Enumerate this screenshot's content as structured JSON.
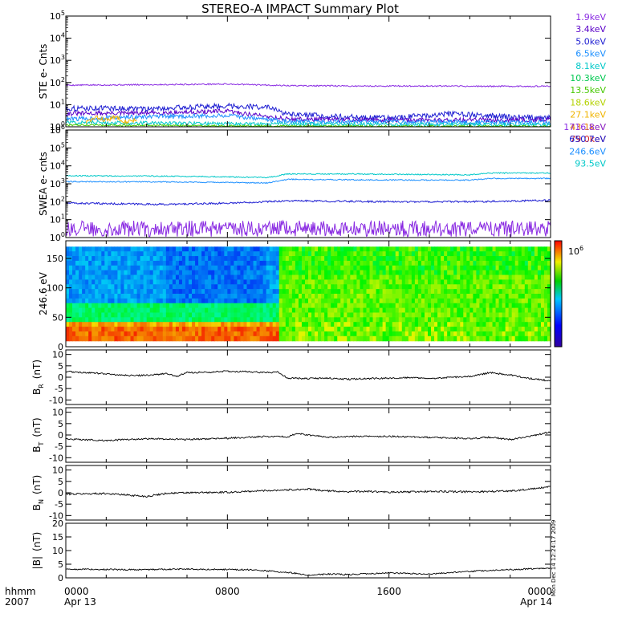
{
  "chart_data": {
    "title": "STEREO-A IMPACT Summary Plot",
    "time_axis": {
      "corner_labels": [
        "hhmm",
        "2007"
      ],
      "ticks": [
        {
          "hour": 0,
          "hhmm": "0000",
          "date": "Apr 13"
        },
        {
          "hour": 8,
          "hhmm": "0800",
          "date": ""
        },
        {
          "hour": 16,
          "hhmm": "1600",
          "date": ""
        },
        {
          "hour": 24,
          "hhmm": "0000",
          "date": "Apr 14"
        }
      ],
      "range_hours": [
        0,
        24
      ]
    },
    "side_annotation": "Mon Dec 14 12:24:17 2009",
    "panels": [
      {
        "id": "ste",
        "ylabel": "STE e- Cnts",
        "type": "line",
        "scale": "log",
        "ylim_exp": [
          0,
          5
        ],
        "ticks": [
          {
            "base": "10",
            "exp": "0",
            "v": 0
          },
          {
            "base": "10",
            "exp": "1",
            "v": 1
          },
          {
            "base": "10",
            "exp": "2",
            "v": 2
          },
          {
            "base": "10",
            "exp": "3",
            "v": 3
          },
          {
            "base": "10",
            "exp": "4",
            "v": 4
          },
          {
            "base": "10",
            "exp": "5",
            "v": 5
          }
        ],
        "legend": [
          {
            "label": "1.9keV",
            "color": "#8a2be2"
          },
          {
            "label": "3.4keV",
            "color": "#5a00c8"
          },
          {
            "label": "5.0keV",
            "color": "#1e1ed2"
          },
          {
            "label": "6.5keV",
            "color": "#1e90ff"
          },
          {
            "label": "8.1keV",
            "color": "#00c8c8"
          },
          {
            "label": "10.3keV",
            "color": "#00c850"
          },
          {
            "label": "13.5keV",
            "color": "#46c800"
          },
          {
            "label": "18.6keV",
            "color": "#b4d200"
          },
          {
            "label": "27.1keV",
            "color": "#f0b400"
          },
          {
            "label": "43.1keV",
            "color": "#e67800"
          },
          {
            "label": "79.0keV",
            "color": "#d21e1e"
          }
        ],
        "series": [
          {
            "color": "#8a2be2",
            "x": [
              0,
              4,
              8,
              11,
              14,
              18,
              20,
              24
            ],
            "logy": [
              1.88,
              1.9,
              1.93,
              1.86,
              1.84,
              1.84,
              1.83,
              1.83
            ],
            "noise": 0.03
          },
          {
            "color": "#1e1ed2",
            "x": [
              0,
              2,
              4,
              6,
              8,
              10,
              11,
              14,
              16,
              19,
              22,
              24
            ],
            "logy": [
              0.82,
              0.85,
              0.8,
              0.88,
              0.95,
              0.88,
              0.55,
              0.45,
              0.4,
              0.58,
              0.45,
              0.4
            ],
            "noise": 0.12
          },
          {
            "color": "#5a00c8",
            "x": [
              0,
              4,
              8,
              11,
              16,
              24
            ],
            "logy": [
              0.6,
              0.62,
              0.7,
              0.35,
              0.3,
              0.32
            ],
            "noise": 0.1
          },
          {
            "color": "#1e90ff",
            "x": [
              0,
              4,
              8,
              11,
              16,
              24
            ],
            "logy": [
              0.35,
              0.45,
              0.5,
              0.25,
              0.22,
              0.2
            ],
            "noise": 0.1
          },
          {
            "color": "#00c8c8",
            "x": [
              0,
              11,
              24
            ],
            "logy": [
              0.2,
              0.12,
              0.1
            ],
            "noise": 0.08
          },
          {
            "color": "#46c800",
            "x": [
              0,
              11,
              24
            ],
            "logy": [
              0.08,
              0.03,
              0.02
            ],
            "noise": 0.04
          },
          {
            "color": "#f0b400",
            "x": [
              1.0,
              1.5,
              2.0,
              2.5,
              3.0,
              3.5
            ],
            "logy": [
              0.2,
              0.42,
              0.3,
              0.45,
              0.22,
              0.35
            ],
            "noise": 0.1
          }
        ]
      },
      {
        "id": "swea",
        "ylabel": "SWEA e- cnts",
        "type": "line",
        "scale": "log",
        "ylim_exp": [
          0,
          6
        ],
        "ticks": [
          {
            "base": "10",
            "exp": "0",
            "v": 0
          },
          {
            "base": "10",
            "exp": "1",
            "v": 1
          },
          {
            "base": "10",
            "exp": "2",
            "v": 2
          },
          {
            "base": "10",
            "exp": "3",
            "v": 3
          },
          {
            "base": "10",
            "exp": "4",
            "v": 4
          },
          {
            "base": "10",
            "exp": "5",
            "v": 5
          },
          {
            "base": "10",
            "exp": "6",
            "v": 6
          }
        ],
        "legend": [
          {
            "label": "1716.8eV",
            "color": "#8a2be2"
          },
          {
            "label": "650.7eV",
            "color": "#1e1ed2"
          },
          {
            "label": "246.6eV",
            "color": "#1e90ff"
          },
          {
            "label": "93.5eV",
            "color": "#00c8c8"
          }
        ],
        "series": [
          {
            "color": "#00c8c8",
            "x": [
              0,
              6,
              10,
              11,
              14,
              20,
              21,
              24
            ],
            "logy": [
              3.45,
              3.42,
              3.35,
              3.55,
              3.55,
              3.5,
              3.6,
              3.6
            ],
            "noise": 0.03
          },
          {
            "color": "#1e90ff",
            "x": [
              0,
              6,
              10,
              11,
              14,
              20,
              21,
              24
            ],
            "logy": [
              3.12,
              3.1,
              3.05,
              3.25,
              3.22,
              3.2,
              3.3,
              3.3
            ],
            "noise": 0.03
          },
          {
            "color": "#1e1ed2",
            "x": [
              0,
              5,
              8,
              11,
              16,
              20,
              24
            ],
            "logy": [
              1.92,
              1.85,
              1.92,
              2.05,
              2.0,
              2.0,
              2.08
            ],
            "noise": 0.05
          },
          {
            "color": "#8a2be2",
            "x": [
              0,
              24
            ],
            "logy": [
              0.5,
              0.5
            ],
            "noise": 0.45
          }
        ]
      },
      {
        "id": "pad",
        "ylabel": "246.6 eV",
        "type": "heatmap",
        "ylim": [
          0,
          180
        ],
        "ticks": [
          {
            "label": "0",
            "v": 0
          },
          {
            "label": "50",
            "v": 50
          },
          {
            "label": "100",
            "v": 100
          },
          {
            "label": "150",
            "v": 150
          }
        ],
        "colorbar": {
          "base": "10",
          "exp": "6"
        }
      },
      {
        "id": "br",
        "ylabel": "B",
        "ysub": "R",
        "yunit": "(nT)",
        "type": "line",
        "ylim": [
          -12,
          12
        ],
        "ticks": [
          {
            "label": "10",
            "v": 10
          },
          {
            "label": "5",
            "v": 5
          },
          {
            "label": "0",
            "v": 0
          },
          {
            "label": "-5",
            "v": -5
          },
          {
            "label": "-10",
            "v": -10
          }
        ],
        "series": [
          {
            "color": "#000000",
            "x": [
              0,
              1,
              2,
              3,
              4,
              5,
              5.5,
              6,
              7,
              8,
              9,
              10,
              10.5,
              11,
              12,
              13,
              14,
              15,
              16,
              17,
              18,
              19,
              20,
              21,
              22,
              23,
              24
            ],
            "y": [
              2.5,
              2.0,
              1.5,
              0.8,
              0.8,
              1.6,
              0.4,
              2.0,
              2.2,
              2.6,
              2.4,
              2.0,
              2.2,
              -0.4,
              -0.6,
              -0.4,
              -0.9,
              -0.6,
              -0.4,
              -0.2,
              -0.6,
              -0.1,
              0.3,
              2.0,
              1.0,
              -0.6,
              -1.6
            ],
            "noise": 0.35
          }
        ]
      },
      {
        "id": "bt",
        "ylabel": "B",
        "ysub": "T",
        "yunit": "(nT)",
        "type": "line",
        "ylim": [
          -12,
          12
        ],
        "ticks": [
          {
            "label": "10",
            "v": 10
          },
          {
            "label": "5",
            "v": 5
          },
          {
            "label": "0",
            "v": 0
          },
          {
            "label": "-5",
            "v": -5
          },
          {
            "label": "-10",
            "v": -10
          }
        ],
        "series": [
          {
            "color": "#000000",
            "x": [
              0,
              2,
              4,
              6,
              8,
              10,
              11,
              11.5,
              12,
              13,
              14,
              16,
              18,
              20,
              21,
              22,
              23,
              24
            ],
            "y": [
              -1.8,
              -2.4,
              -1.6,
              -2.0,
              -1.4,
              -0.6,
              -0.8,
              0.8,
              0.0,
              -1.0,
              -0.7,
              -0.6,
              -1.0,
              -1.6,
              -1.0,
              -2.0,
              -0.6,
              1.4
            ],
            "noise": 0.35
          }
        ]
      },
      {
        "id": "bn",
        "ylabel": "B",
        "ysub": "N",
        "yunit": "(nT)",
        "type": "line",
        "ylim": [
          -12,
          12
        ],
        "ticks": [
          {
            "label": "10",
            "v": 10
          },
          {
            "label": "5",
            "v": 5
          },
          {
            "label": "0",
            "v": 0
          },
          {
            "label": "-5",
            "v": -5
          },
          {
            "label": "-10",
            "v": -10
          }
        ],
        "series": [
          {
            "color": "#000000",
            "x": [
              0,
              2,
              4,
              5,
              6,
              8,
              10,
              12,
              13,
              14,
              15,
              16,
              18,
              20,
              22,
              23,
              24
            ],
            "y": [
              -0.6,
              -0.3,
              -1.6,
              -0.2,
              0.0,
              0.2,
              1.0,
              1.6,
              0.8,
              0.5,
              0.6,
              0.2,
              0.6,
              0.4,
              0.8,
              1.6,
              2.6
            ],
            "noise": 0.4
          }
        ]
      },
      {
        "id": "bmag",
        "ylabel": "|B|",
        "yunit": "(nT)",
        "type": "line",
        "ylim": [
          0,
          20
        ],
        "ticks": [
          {
            "label": "20",
            "v": 20
          },
          {
            "label": "15",
            "v": 15
          },
          {
            "label": "10",
            "v": 10
          },
          {
            "label": "5",
            "v": 5
          },
          {
            "label": "0",
            "v": 0
          }
        ],
        "series": [
          {
            "color": "#000000",
            "x": [
              0,
              3,
              6,
              9,
              11,
              12,
              13,
              14,
              16,
              18,
              20,
              22,
              24
            ],
            "y": [
              3.2,
              3.0,
              3.2,
              3.0,
              2.0,
              1.0,
              1.4,
              1.2,
              1.8,
              1.4,
              2.4,
              3.0,
              3.6
            ],
            "noise": 0.25
          }
        ]
      }
    ]
  }
}
